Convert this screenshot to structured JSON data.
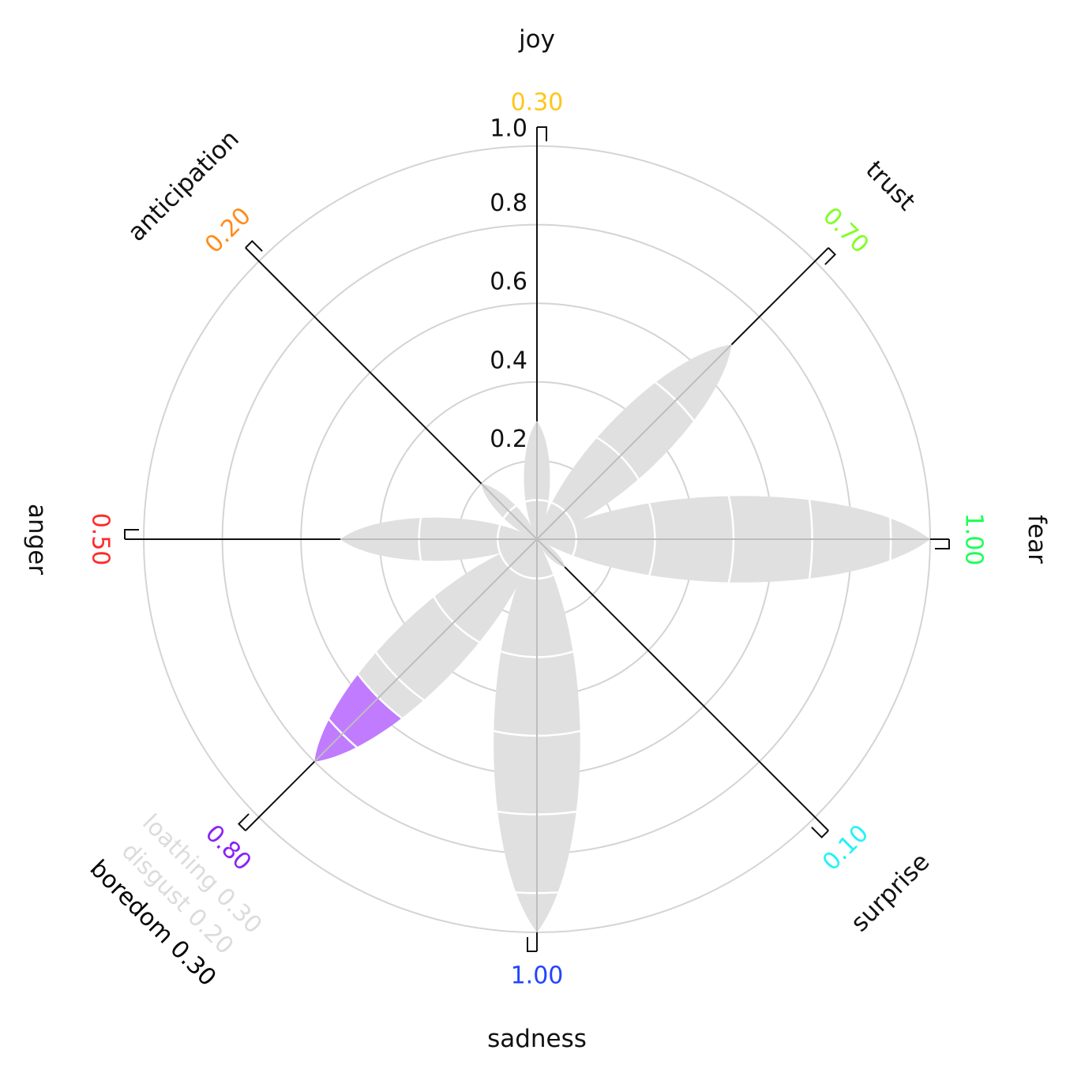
{
  "chart_data": {
    "type": "radial",
    "r_ticks": [
      "0.2",
      "0.4",
      "0.6",
      "0.8",
      "1.0"
    ],
    "rlim": [
      0,
      1
    ],
    "petal_color": "#e0e0e0",
    "emotions": [
      {
        "name": "joy",
        "value": 0.3,
        "value_label": "0.30",
        "color": "#ffc61a",
        "petal": 0.3
      },
      {
        "name": "trust",
        "value": 0.7,
        "value_label": "0.70",
        "color": "#80ff22",
        "petal": 0.7
      },
      {
        "name": "fear",
        "value": 1.0,
        "value_label": "1.00",
        "color": "#1aff55",
        "petal": 1.0
      },
      {
        "name": "surprise",
        "value": 0.1,
        "value_label": "0.10",
        "color": "#22f2f7",
        "petal": 0.1
      },
      {
        "name": "sadness",
        "value": 1.0,
        "value_label": "1.00",
        "color": "#2244ff",
        "petal": 1.0
      },
      {
        "name": "",
        "value": 0.8,
        "value_label": "0.80",
        "color": "#8a22f7",
        "petal": 0.8,
        "highlight_from": 0.57,
        "sub_labels": [
          {
            "text": "loathing 0.30",
            "color": "#dcdcdc"
          },
          {
            "text": "disgust 0.20",
            "color": "#dcdcdc"
          },
          {
            "text": "boredom 0.30",
            "color": "#000000"
          }
        ]
      },
      {
        "name": "anger",
        "value": 0.5,
        "value_label": "0.50",
        "color": "#ff2a2a",
        "petal": 0.5
      },
      {
        "name": "anticipation",
        "value": 0.2,
        "value_label": "0.20",
        "color": "#ff8c1a",
        "petal": 0.2
      }
    ],
    "highlight_color": "#c07bff"
  }
}
